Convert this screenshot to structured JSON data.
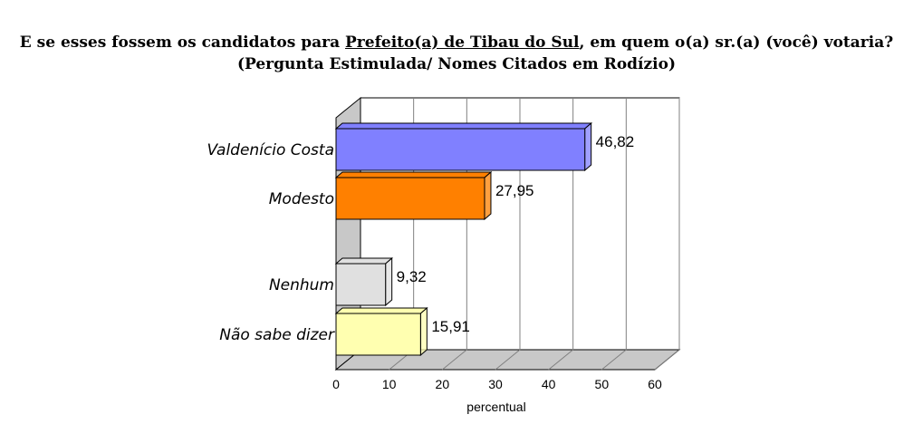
{
  "title": {
    "before": "E se esses fossem os candidatos para ",
    "underlined": "Prefeito(a) de Tibau do Sul",
    "after": ", em quem o(a) sr.(a) (você) votaria?",
    "line2": "(Pergunta Estimulada/ Nomes Citados em Rodízio)"
  },
  "chart_data": {
    "type": "bar",
    "orientation": "horizontal",
    "categories": [
      "Valdenício Costa",
      "Modesto",
      "Nenhum",
      "Não sabe dizer"
    ],
    "values": [
      46.82,
      27.95,
      9.32,
      15.91
    ],
    "value_labels": [
      "46,82",
      "27,95",
      "9,32",
      "15,91"
    ],
    "colors": [
      "#8080ff",
      "#ff8000",
      "#e0e0e0",
      "#ffffb0"
    ],
    "xlabel": "percentual",
    "xlim": [
      0,
      60
    ],
    "xticks": [
      0,
      10,
      20,
      30,
      40,
      50,
      60
    ],
    "grid": true
  }
}
